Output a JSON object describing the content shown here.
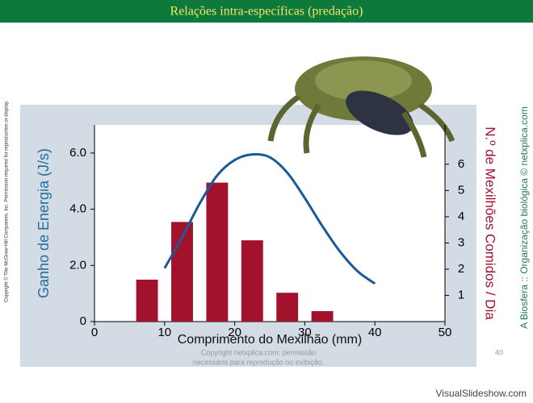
{
  "slide": {
    "header": "Relações intra-específicas (predação)",
    "left_note": "Copyright © The McGraw-Hill Companies, Inc. Permission required for reproduction or display.",
    "right_note": "A Biosfera :: Organização biológica © netxplica.com",
    "footer_line1": "Copyright netxplica.com: permissão",
    "footer_line2": "necessária para reprodução ou exibição.",
    "page_number": "40",
    "watermark": "VisualSlideshow.com"
  },
  "chart_data": {
    "type": "bar",
    "x_label": "Comprimento do Mexilhão (mm)",
    "y_label": "Ganho de Energia (J/s)",
    "y2_label": "N.º de Mexilhões Comidos / Dia",
    "xlim": [
      0,
      50
    ],
    "xticks": [
      0,
      10,
      20,
      30,
      40,
      50
    ],
    "ylim": [
      0,
      7
    ],
    "yticks": [
      0,
      {
        "value": 2,
        "label": "2.0"
      },
      {
        "value": 4,
        "label": "4.0"
      },
      {
        "value": 6,
        "label": "6.0"
      }
    ],
    "y2lim": [
      0,
      7.5
    ],
    "y2ticks": [
      1,
      2,
      3,
      4,
      5,
      6
    ],
    "series": [
      {
        "type": "bar",
        "axis": "y2",
        "color": "#a3122c",
        "x": [
          7.5,
          12.5,
          17.5,
          22.5,
          27.5,
          32.5
        ],
        "values": [
          1.6,
          3.8,
          5.3,
          3.1,
          1.1,
          0.4
        ]
      },
      {
        "type": "line",
        "axis": "y",
        "color": "#1b5a99",
        "x": [
          10,
          12.5,
          15,
          17.5,
          20,
          22.5,
          25,
          27.5,
          30,
          32.5,
          35,
          37.5,
          40
        ],
        "values": [
          1.9,
          3.0,
          4.2,
          5.2,
          5.75,
          5.95,
          5.85,
          5.3,
          4.4,
          3.4,
          2.5,
          1.8,
          1.35
        ]
      }
    ]
  }
}
